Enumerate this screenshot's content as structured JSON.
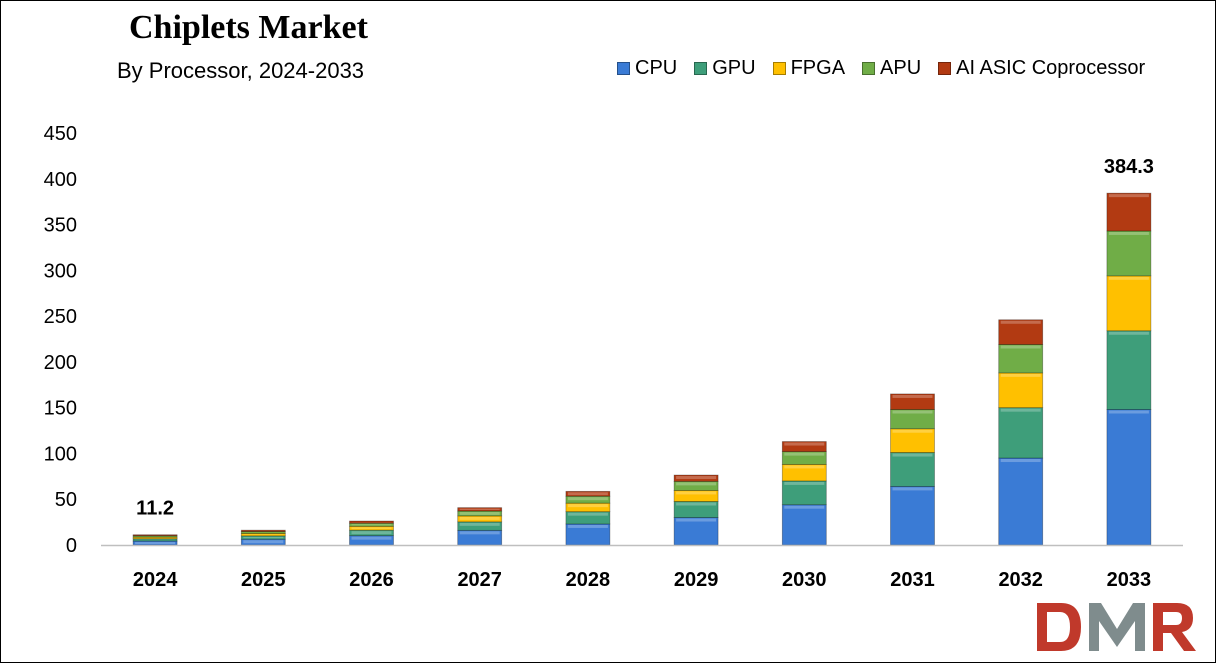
{
  "chart_data": {
    "type": "bar",
    "stacked": true,
    "title": "Chiplets Market",
    "subtitle": "By Processor, 2024-2033",
    "xlabel": "",
    "ylabel": "",
    "categories": [
      "2024",
      "2025",
      "2026",
      "2027",
      "2028",
      "2029",
      "2030",
      "2031",
      "2032",
      "2033"
    ],
    "series": [
      {
        "name": "CPU",
        "color": "#3A7BD5",
        "values": [
          4.3,
          6.3,
          10.2,
          16.0,
          23.0,
          30.0,
          44.0,
          64.0,
          95.0,
          148.0
        ]
      },
      {
        "name": "GPU",
        "color": "#3E9E7A",
        "values": [
          2.5,
          3.7,
          6.0,
          9.3,
          13.4,
          17.5,
          26.0,
          37.0,
          55.0,
          86.0
        ]
      },
      {
        "name": "FPGA",
        "color": "#FFC000",
        "values": [
          1.8,
          2.6,
          4.2,
          6.5,
          9.3,
          12.1,
          18.0,
          26.0,
          38.0,
          60.0
        ]
      },
      {
        "name": "APU",
        "color": "#70AD47",
        "values": [
          1.5,
          2.1,
          3.4,
          5.3,
          7.6,
          9.9,
          14.0,
          21.0,
          31.0,
          49.0
        ]
      },
      {
        "name": "AI ASIC Coprocessor",
        "color": "#B23A12",
        "values": [
          1.1,
          1.5,
          2.4,
          3.7,
          5.3,
          6.9,
          11.0,
          17.0,
          27.0,
          41.3
        ]
      }
    ],
    "totals_labels": {
      "2024": "11.2",
      "2033": "384.3"
    },
    "ylim": [
      0,
      450
    ],
    "yticks": [
      0,
      50,
      100,
      150,
      200,
      250,
      300,
      350,
      400,
      450
    ],
    "grid": false,
    "legend_position": "top-right"
  },
  "logo": {
    "text": "DMR",
    "primary_color": "#C0392B",
    "secondary_color": "#7F8C8D"
  }
}
